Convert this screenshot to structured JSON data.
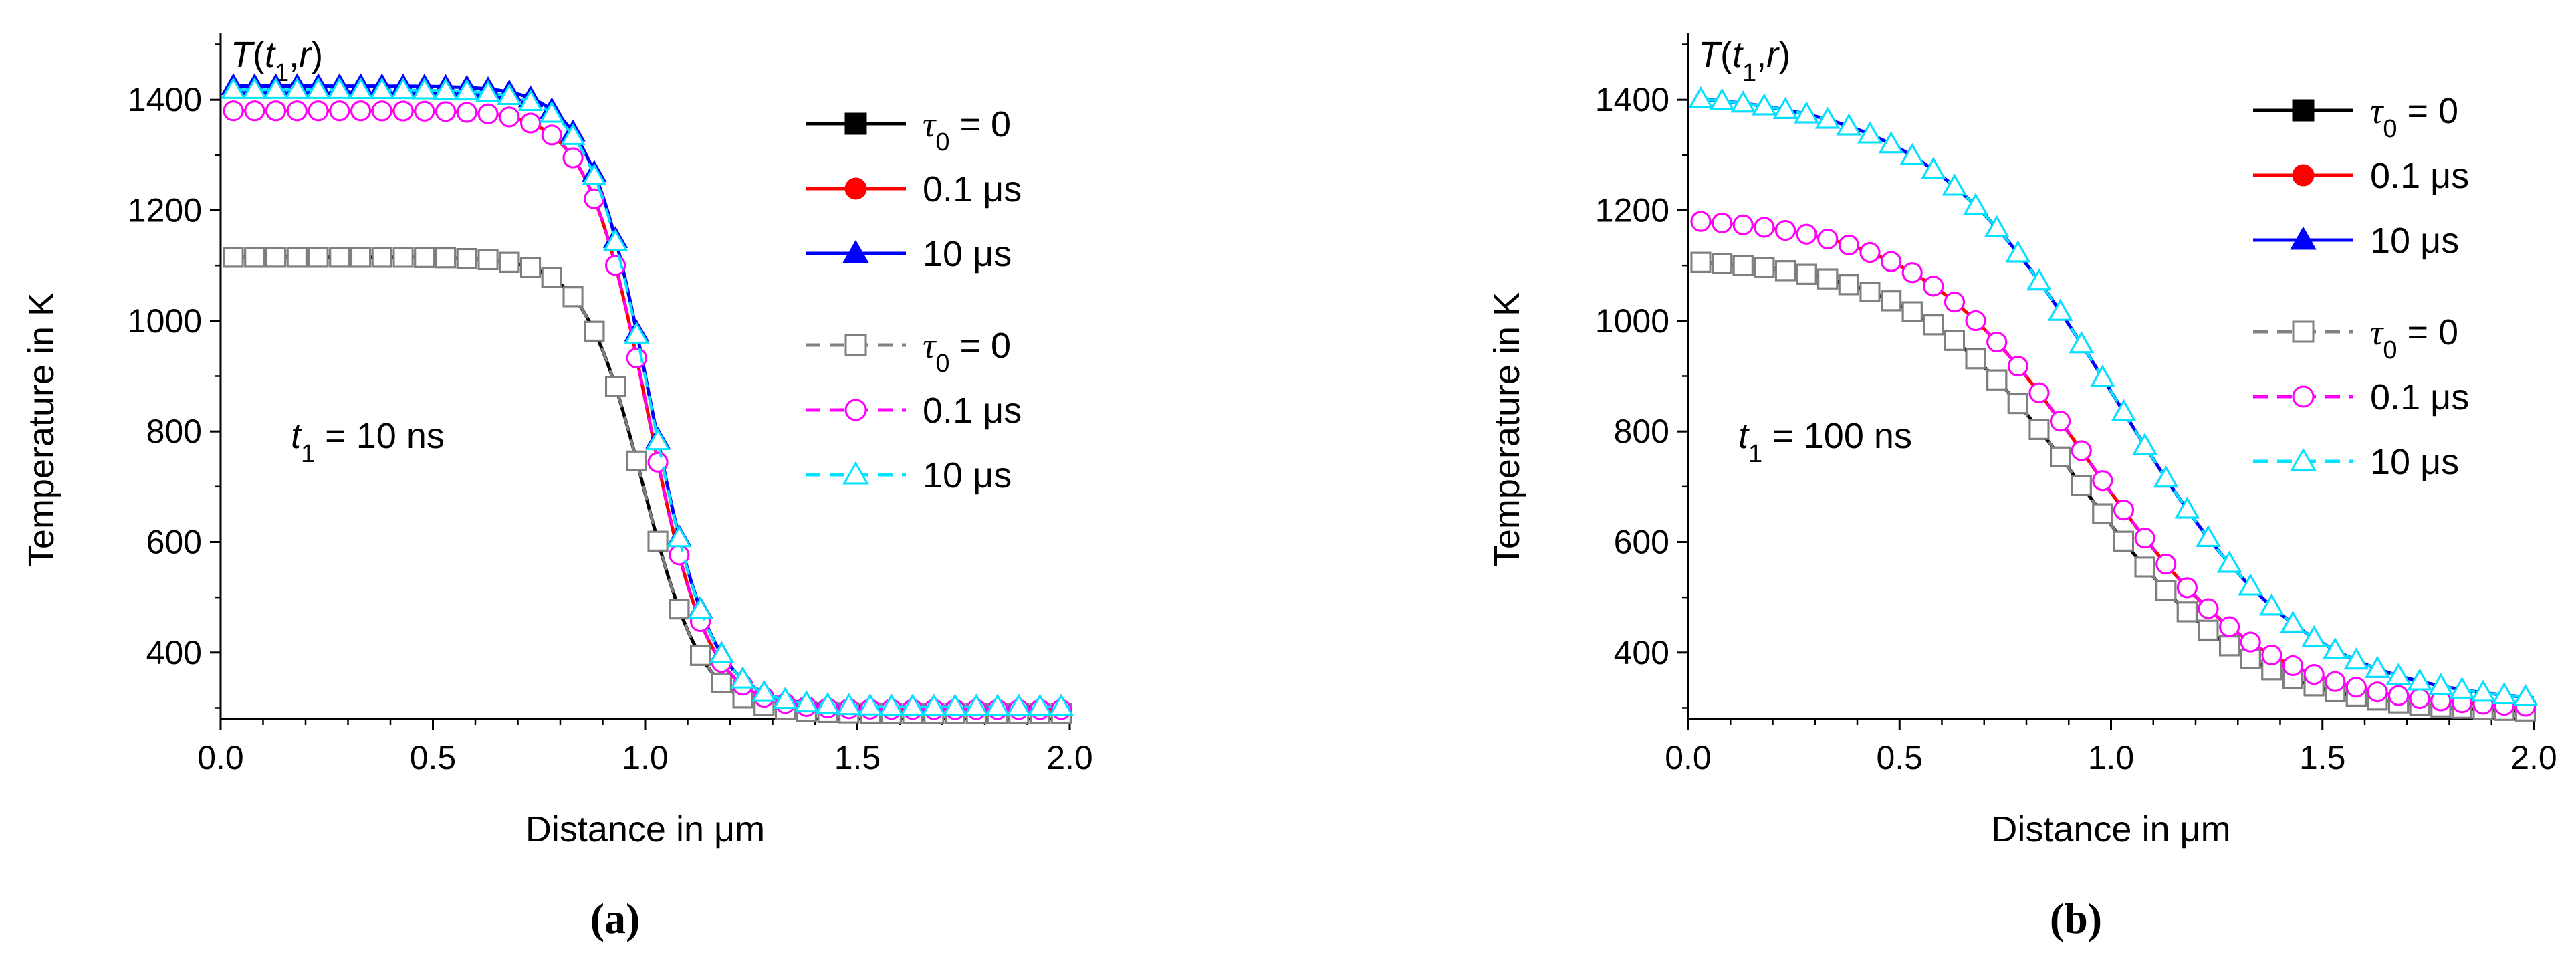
{
  "figure": {
    "colors": {
      "black": "#000000",
      "red": "#ff0000",
      "blue": "#0000ff",
      "gray": "#808080",
      "magenta": "#ff00ff",
      "cyan": "#00e5ff"
    }
  },
  "chart_data": [
    {
      "type": "line",
      "panel_label": "(a)",
      "title": "T(t1,r)",
      "xlabel": "Distance in μm",
      "ylabel": "Temperature in K",
      "annotation": "t1 = 10 ns",
      "xlim": [
        0,
        2.0
      ],
      "ylim": [
        280,
        1520
      ],
      "xticks": [
        "0.0",
        "0.5",
        "1.0",
        "1.5",
        "2.0"
      ],
      "yticks": [
        "400",
        "600",
        "800",
        "1000",
        "1200",
        "1400"
      ],
      "legend_position": "top-right",
      "profile": {
        "center": 0.995,
        "width": 0.07,
        "ambient": 300
      },
      "series": [
        {
          "name": "τ0 = 0",
          "color": "#000000",
          "dash": "solid",
          "marker": "square",
          "filled": true,
          "peak": 1115,
          "ambient": 290,
          "offset": 0.0
        },
        {
          "name": "0.1 μs",
          "color": "#ff0000",
          "dash": "solid",
          "marker": "circle",
          "filled": true,
          "peak": 1380,
          "ambient": 297,
          "offset": 0.01
        },
        {
          "name": "10 μs",
          "color": "#0000ff",
          "dash": "solid",
          "marker": "triangle",
          "filled": true,
          "peak": 1425,
          "ambient": 302,
          "offset": 0.015
        },
        {
          "name": "τ0 = 0",
          "color": "#808080",
          "dash": "dashed",
          "marker": "square",
          "filled": false,
          "peak": 1115,
          "ambient": 290,
          "offset": 0.0
        },
        {
          "name": "0.1 μs",
          "color": "#ff00ff",
          "dash": "dashed",
          "marker": "circle",
          "filled": false,
          "peak": 1380,
          "ambient": 297,
          "offset": 0.01
        },
        {
          "name": "10 μs",
          "color": "#00e5ff",
          "dash": "dashed",
          "marker": "triangle",
          "filled": false,
          "peak": 1418,
          "ambient": 302,
          "offset": 0.015
        }
      ]
    },
    {
      "type": "line",
      "panel_label": "(b)",
      "title": "T(t1,r)",
      "xlabel": "Distance in μm",
      "ylabel": "Temperature in K",
      "annotation": "t1 = 100 ns",
      "xlim": [
        0,
        2.0
      ],
      "ylim": [
        280,
        1520
      ],
      "xticks": [
        "0.0",
        "0.5",
        "1.0",
        "1.5",
        "2.0"
      ],
      "yticks": [
        "400",
        "600",
        "800",
        "1000",
        "1200",
        "1400"
      ],
      "legend_position": "top-right",
      "profile": {
        "center": 0.93,
        "width": 0.2,
        "ambient": 300
      },
      "series": [
        {
          "name": "τ0 = 0",
          "color": "#000000",
          "dash": "solid",
          "marker": "square",
          "filled": true,
          "peak": 1115,
          "ambient": 290,
          "offset": 0.0
        },
        {
          "name": "0.1 μs",
          "color": "#ff0000",
          "dash": "solid",
          "marker": "circle",
          "filled": true,
          "peak": 1190,
          "ambient": 297,
          "offset": 0.02
        },
        {
          "name": "10 μs",
          "color": "#0000ff",
          "dash": "solid",
          "marker": "triangle",
          "filled": true,
          "peak": 1415,
          "ambient": 305,
          "offset": 0.08
        },
        {
          "name": "τ0 = 0",
          "color": "#808080",
          "dash": "dashed",
          "marker": "square",
          "filled": false,
          "peak": 1115,
          "ambient": 290,
          "offset": 0.0
        },
        {
          "name": "0.1 μs",
          "color": "#ff00ff",
          "dash": "dashed",
          "marker": "circle",
          "filled": false,
          "peak": 1190,
          "ambient": 297,
          "offset": 0.02
        },
        {
          "name": "10 μs",
          "color": "#00e5ff",
          "dash": "dashed",
          "marker": "triangle",
          "filled": false,
          "peak": 1415,
          "ambient": 305,
          "offset": 0.08
        }
      ]
    }
  ]
}
